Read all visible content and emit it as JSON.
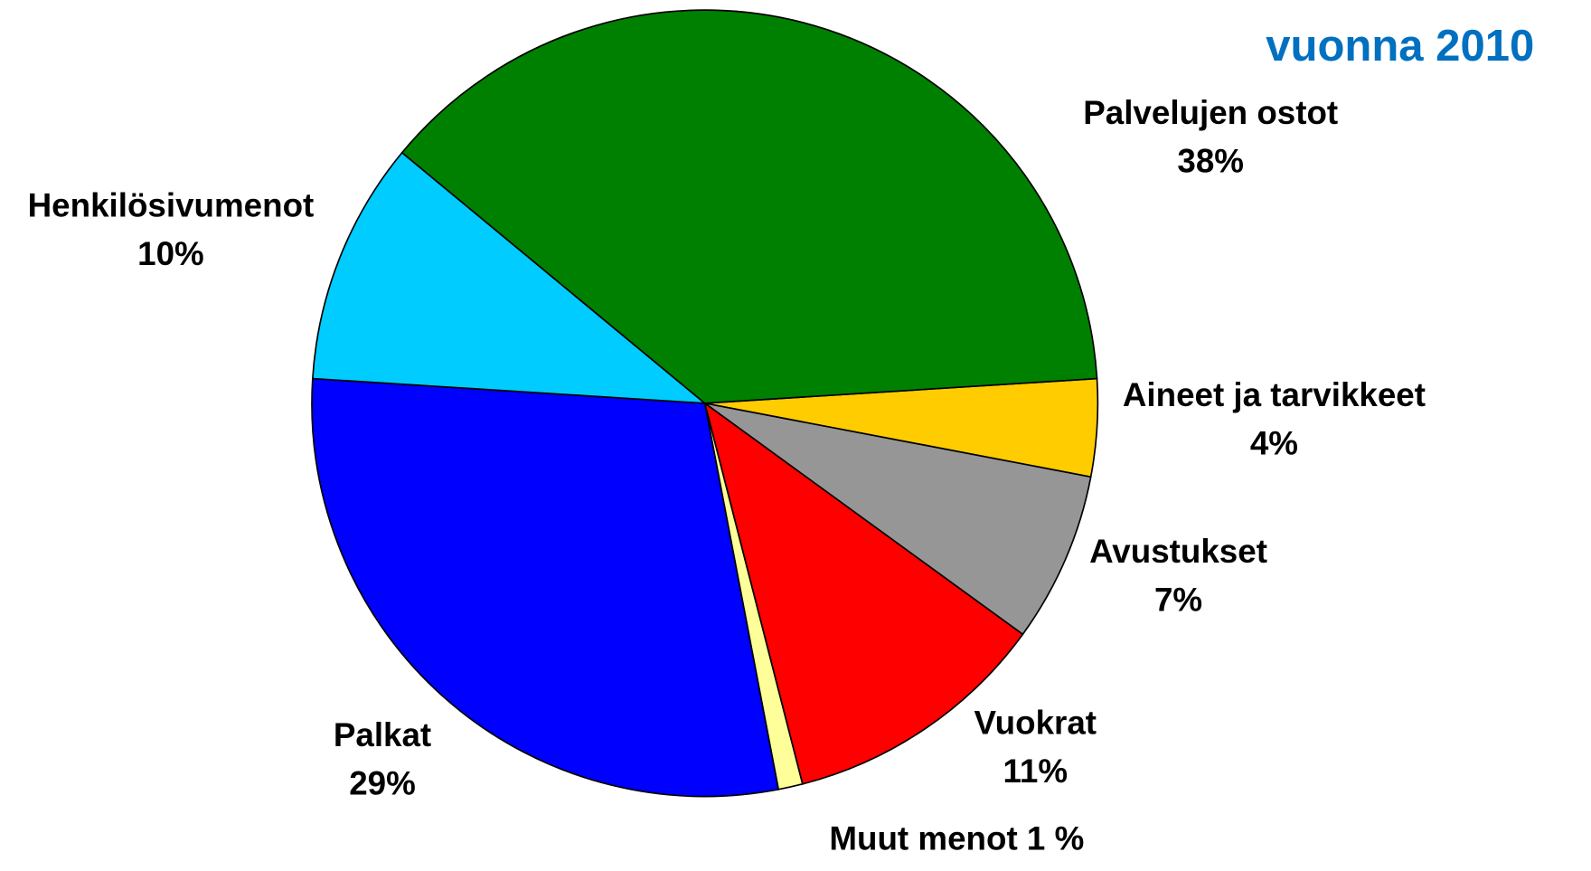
{
  "chart_data": {
    "type": "pie",
    "title": "vuonna 2010",
    "title_color": "#0070c0",
    "categories": [
      "Aineet ja tarvikkeet",
      "Avustukset",
      "Vuokrat",
      "Muut menot",
      "Palkat",
      "Henkilösivumenot",
      "Palvelujen ostot"
    ],
    "values": [
      4,
      7,
      11,
      1,
      29,
      10,
      38
    ],
    "value_labels": [
      "4%",
      "7%",
      "11%",
      "1 %",
      "29%",
      "10%",
      "38%"
    ],
    "colors": [
      "#ffcc00",
      "#969696",
      "#ff0000",
      "#ffff99",
      "#0000ff",
      "#00ccff",
      "#008000"
    ]
  }
}
